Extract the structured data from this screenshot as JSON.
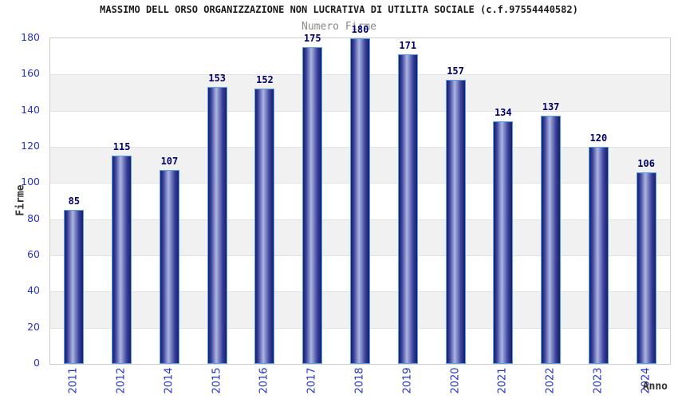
{
  "header": {
    "title": "MASSIMO DELL ORSO ORGANIZZAZIONE NON LUCRATIVA DI UTILITA SOCIALE (c.f.97554440582)",
    "subtitle": "Numero Firme"
  },
  "chart_data": {
    "type": "bar",
    "title": "MASSIMO DELL ORSO ORGANIZZAZIONE NON LUCRATIVA DI UTILITA SOCIALE (c.f.97554440582)",
    "subtitle": "Numero Firme",
    "xlabel": "Anno",
    "ylabel": "Firme",
    "categories": [
      "2011",
      "2012",
      "2014",
      "2015",
      "2016",
      "2017",
      "2018",
      "2019",
      "2020",
      "2021",
      "2022",
      "2023",
      "2024"
    ],
    "values": [
      85,
      115,
      107,
      153,
      152,
      175,
      180,
      171,
      157,
      134,
      137,
      120,
      106
    ],
    "yticks": [
      0,
      20,
      40,
      60,
      80,
      100,
      120,
      140,
      160,
      180
    ],
    "ylim": [
      0,
      180
    ],
    "grid": "alternating-horizontal-bands",
    "legend": "none",
    "colors": {
      "tick_label": "#2433cc",
      "value_label": "#00006b",
      "bar_dark": "#161d6e",
      "bar_mid": "#39419a",
      "bar_light": "#aeb5e2",
      "bar_outline": "#57a3e6",
      "band_gray": "#f1f1f1",
      "band_white": "#ffffff",
      "plot_border": "#cccccc",
      "title_color": "#1a1a1a",
      "subtitle_color": "#8a8a8a",
      "axis_title_color": "#333333"
    }
  }
}
